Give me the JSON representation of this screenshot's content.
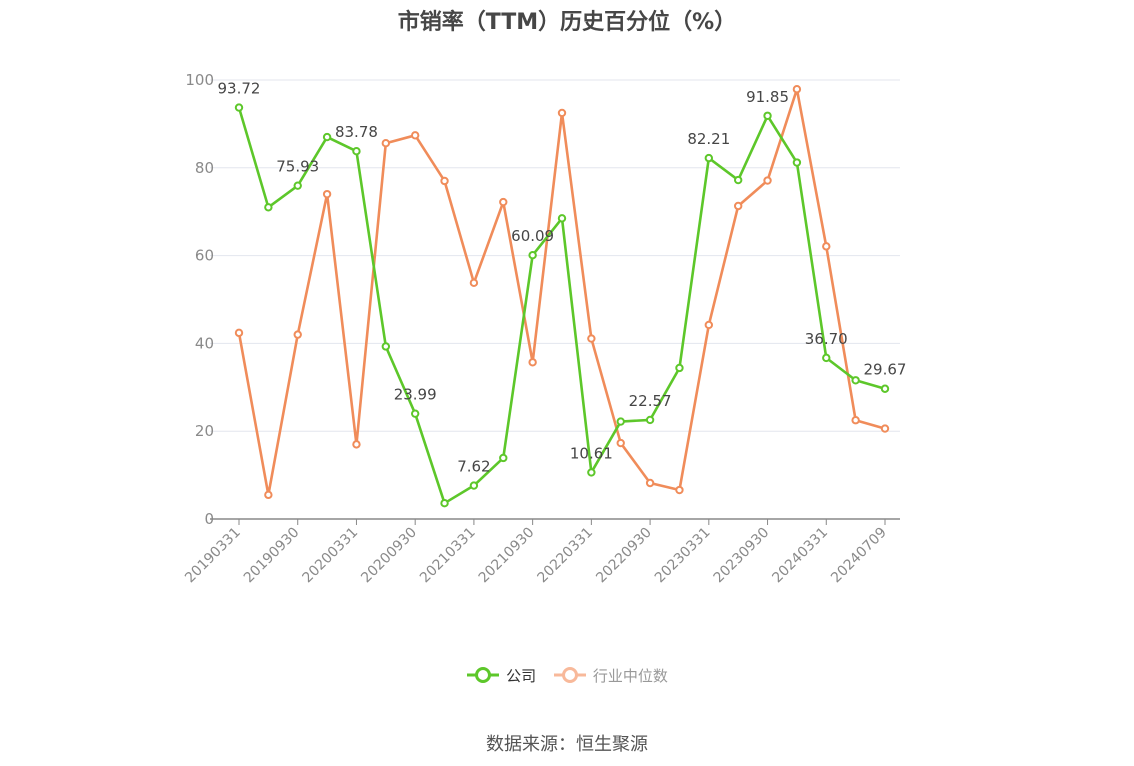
{
  "chart_data": {
    "type": "line",
    "title": "市销率（TTM）历史百分位（%）",
    "xlabel": "",
    "ylabel": "",
    "ylim": [
      0,
      100
    ],
    "yticks": [
      "0",
      "20",
      "40",
      "60",
      "80",
      "100"
    ],
    "x_tick_labels": [
      "20190331",
      "20190930",
      "20200331",
      "20200930",
      "20210331",
      "20210930",
      "20220331",
      "20220930",
      "20230331",
      "20230930",
      "20240331",
      "20240709"
    ],
    "x": [
      "20190331",
      "20190630",
      "20190930",
      "20191231",
      "20200331",
      "20200630",
      "20200930",
      "20201231",
      "20210331",
      "20210630",
      "20210930",
      "20211231",
      "20220331",
      "20220630",
      "20220930",
      "20221231",
      "20230331",
      "20230630",
      "20230930",
      "20231231",
      "20240331",
      "20240630",
      "20240709"
    ],
    "series": [
      {
        "name": "公司",
        "color": "#5dc72a",
        "values": [
          93.72,
          71.0,
          75.93,
          87.0,
          83.78,
          39.3,
          23.99,
          3.6,
          7.62,
          13.9,
          60.09,
          68.5,
          10.61,
          22.2,
          22.57,
          34.4,
          82.21,
          77.2,
          91.85,
          81.2,
          36.7,
          31.6,
          29.67
        ],
        "labels": [
          "93.72",
          "",
          "75.93",
          "",
          "83.78",
          "",
          "23.99",
          "",
          "7.62",
          "",
          "60.09",
          "",
          "10.61",
          "",
          "22.57",
          "",
          "82.21",
          "",
          "91.85",
          "",
          "36.70",
          "",
          "29.67"
        ]
      },
      {
        "name": "行业中位数",
        "color": "#f08c5a",
        "values": [
          42.4,
          5.5,
          42.0,
          74.0,
          17.0,
          85.6,
          87.4,
          77.0,
          53.8,
          72.2,
          35.7,
          92.5,
          41.1,
          17.3,
          8.2,
          6.6,
          44.2,
          71.3,
          77.1,
          97.9,
          62.1,
          22.5,
          20.6
        ]
      }
    ],
    "grid": true,
    "legend_position": "bottom"
  },
  "legend": {
    "company": "公司",
    "industry": "行业中位数",
    "company_color": "#5dc72a",
    "industry_color": "#f8b99a"
  },
  "source": "数据来源：恒生聚源"
}
